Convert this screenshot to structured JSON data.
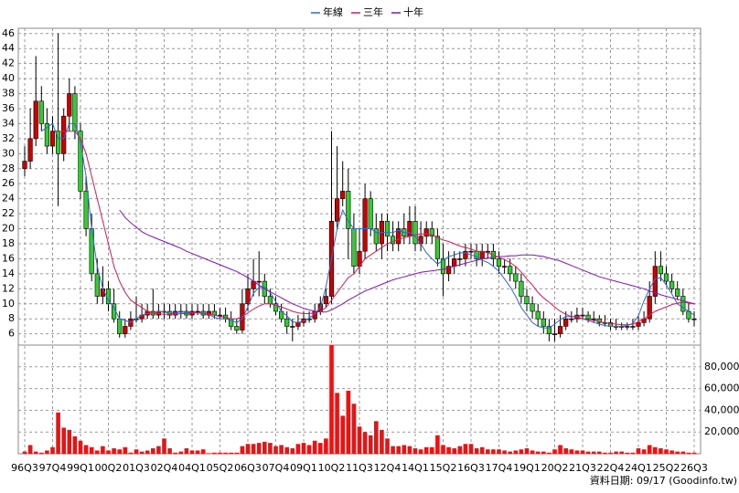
{
  "chart_data": {
    "type": "candlestick",
    "categories": [
      "96Q3",
      null,
      null,
      null,
      null,
      "97Q4",
      null,
      null,
      null,
      null,
      "99Q1",
      null,
      null,
      null,
      null,
      "00Q2",
      null,
      null,
      null,
      null,
      "01Q3",
      null,
      null,
      null,
      null,
      "02Q4",
      null,
      null,
      null,
      null,
      "04Q1",
      null,
      null,
      null,
      null,
      "05Q2",
      null,
      null,
      null,
      null,
      "06Q3",
      null,
      null,
      null,
      null,
      "07Q4",
      null,
      null,
      null,
      null,
      "09Q1",
      null,
      null,
      null,
      null,
      "10Q2",
      null,
      null,
      null,
      null,
      "11Q3",
      null,
      null,
      null,
      null,
      "12Q4",
      null,
      null,
      null,
      null,
      "14Q1",
      null,
      null,
      null,
      null,
      "15Q2",
      null,
      null,
      null,
      null,
      "16Q3",
      null,
      null,
      null,
      null,
      "17Q4",
      null,
      null,
      null,
      null,
      "19Q1",
      null,
      null,
      null,
      null,
      "20Q2",
      null,
      null,
      null,
      null,
      "21Q3",
      null,
      null,
      null,
      null,
      "22Q4",
      null,
      null,
      null,
      null,
      "24Q1",
      null,
      null,
      null,
      null,
      "25Q2",
      null,
      null,
      null,
      null,
      "26Q3"
    ],
    "open": [
      28,
      29,
      32,
      37,
      34,
      31,
      33,
      30,
      35,
      38,
      33,
      25,
      20,
      14,
      11,
      12,
      10,
      8,
      6,
      7,
      8,
      8,
      8.5,
      9,
      8.5,
      9,
      9,
      8.5,
      9,
      9,
      8.5,
      9,
      9,
      8.5,
      9,
      8.5,
      8.5,
      8,
      7,
      6.5,
      10,
      12,
      13,
      13,
      11,
      10,
      9,
      8,
      7,
      7,
      7.5,
      8,
      8,
      9,
      10,
      11,
      21,
      24,
      25,
      20,
      15,
      17,
      24,
      20,
      18,
      21,
      19,
      18,
      20,
      19,
      21,
      18,
      19,
      20,
      19,
      16,
      14,
      15,
      16,
      16,
      17,
      17,
      16,
      17,
      17,
      16,
      15,
      15,
      14,
      13,
      11,
      10,
      9,
      8,
      7,
      6,
      6,
      7,
      8,
      8,
      8.5,
      8.5,
      8,
      8,
      7.5,
      7.5,
      7,
      7,
      7,
      7,
      7,
      7.5,
      8,
      11,
      15,
      14,
      13,
      12,
      11,
      9,
      8
    ],
    "high": [
      31,
      36,
      43,
      39,
      36,
      35,
      46,
      36,
      40,
      39,
      34,
      27,
      22,
      16,
      15,
      13,
      12,
      9,
      8,
      9,
      11,
      10,
      10,
      12,
      10,
      10,
      10,
      10,
      10,
      10,
      10,
      10,
      10,
      10,
      10,
      9.5,
      9.5,
      9,
      8,
      12,
      14,
      16,
      17,
      14,
      12,
      11,
      10,
      9,
      8,
      8.5,
      9,
      9,
      10,
      11,
      12,
      33,
      31,
      29,
      28,
      22,
      20,
      26,
      25,
      22,
      22,
      22,
      21,
      21,
      22,
      23,
      23,
      21,
      21,
      21,
      20,
      18,
      17,
      17,
      17,
      18,
      18,
      18,
      18,
      18,
      18,
      17,
      16,
      16,
      15,
      14,
      12,
      11,
      10,
      9,
      8,
      8,
      8.5,
      9,
      9,
      9.5,
      9.5,
      9,
      9,
      8.5,
      8.5,
      8,
      8,
      7.5,
      7.5,
      8,
      8.5,
      9,
      13,
      17,
      17,
      15,
      14,
      13,
      12,
      10,
      9
    ],
    "low": [
      27,
      28,
      31,
      33,
      30,
      30,
      23,
      29,
      33,
      32,
      24,
      19,
      13,
      10,
      10,
      9,
      7.5,
      5.5,
      5.5,
      6.5,
      7.5,
      7.5,
      8,
      8,
      8,
      8,
      8,
      8,
      8,
      8,
      8,
      8.5,
      8,
      8,
      8,
      8,
      7.5,
      6.5,
      6,
      6,
      9,
      11,
      11,
      10,
      9.5,
      8.5,
      7.5,
      6,
      5,
      6.5,
      7,
      7.5,
      7.5,
      8.5,
      9.5,
      10,
      20,
      23,
      16,
      14,
      14,
      16,
      19,
      17,
      16,
      17,
      17,
      17,
      18,
      18,
      17,
      17,
      18,
      18,
      15,
      11,
      13,
      14,
      15,
      15,
      16,
      15,
      15,
      16,
      15,
      14,
      14,
      13,
      12,
      10,
      9,
      8,
      7,
      6,
      5,
      5,
      5.5,
      6.5,
      7.5,
      7.5,
      8,
      7.5,
      7.5,
      7,
      7,
      6.5,
      6.5,
      6.5,
      6.5,
      6.5,
      6.5,
      7,
      7.5,
      10,
      13,
      12.5,
      11.5,
      10.5,
      8.5,
      7.5,
      7
    ],
    "close": [
      29,
      32,
      37,
      34,
      31,
      33,
      30,
      35,
      38,
      33,
      25,
      20,
      14,
      11,
      12,
      10,
      8,
      6,
      7,
      8,
      8,
      8.5,
      9,
      8.5,
      9,
      9,
      8.5,
      9,
      9,
      8.5,
      9,
      9,
      8.5,
      9,
      8.5,
      8.5,
      8,
      7,
      6.5,
      10,
      12,
      13,
      13,
      11,
      10,
      9,
      8,
      7,
      7,
      7.5,
      8,
      8,
      9,
      10,
      11,
      21,
      24,
      25,
      20,
      15,
      17,
      24,
      20,
      18,
      21,
      19,
      18,
      20,
      19,
      21,
      18,
      19,
      20,
      19,
      16,
      14,
      15,
      16,
      16,
      17,
      17,
      16,
      17,
      17,
      16,
      15,
      15,
      14,
      13,
      11,
      10,
      9,
      8,
      7,
      6,
      6,
      7,
      8,
      8,
      8.5,
      8.5,
      8,
      8,
      7.5,
      7.5,
      7,
      7,
      7,
      7,
      7,
      7.5,
      8,
      11,
      15,
      14,
      13,
      12,
      11,
      9,
      8,
      8
    ],
    "up_color": "#cc0000",
    "down_color": "#33cc33",
    "candle_edge": "#000000",
    "ylim": [
      4.5,
      46.7
    ],
    "yticks": [
      6,
      8,
      10,
      12,
      14,
      16,
      18,
      20,
      22,
      24,
      26,
      28,
      30,
      32,
      34,
      36,
      38,
      40,
      42,
      44,
      46
    ],
    "grid": true,
    "series": [
      {
        "name": "年線",
        "color": "#2a6ad8",
        "values": [
          null,
          null,
          null,
          33,
          33.5,
          34,
          32,
          32,
          34,
          34,
          31.5,
          27,
          20,
          15,
          12,
          10.5,
          9.5,
          8,
          7.8,
          7.5,
          8,
          8.5,
          8.7,
          8.7,
          9,
          8.9,
          8.7,
          8.8,
          8.9,
          8.8,
          8.8,
          8.8,
          8.8,
          8.6,
          8.2,
          8,
          8,
          7.8,
          7.5,
          8,
          9.6,
          11.4,
          12.2,
          12.2,
          11.5,
          10.3,
          9,
          8.4,
          7.6,
          7.5,
          7.7,
          8.1,
          8.7,
          9.5,
          12.3,
          16,
          20,
          22.5,
          21,
          20,
          20,
          20,
          20,
          19.5,
          19.5,
          19.5,
          19.5,
          19.8,
          19.5,
          19.5,
          19,
          18,
          16.8,
          16,
          15.3,
          15.8,
          16.3,
          16.5,
          16.8,
          16.8,
          16.5,
          16.3,
          15.8,
          15.5,
          15,
          14.3,
          13.3,
          12.3,
          11,
          9.5,
          8.5,
          7.5,
          7,
          6.8,
          6.8,
          7.3,
          7.9,
          8.3,
          8.3,
          8.3,
          8,
          7.8,
          7.5,
          7.3,
          7.1,
          7,
          7,
          7,
          7.1,
          7.4,
          8.4,
          10.4,
          12,
          13.3,
          13.5,
          12.5,
          11.3,
          10,
          9.5,
          9,
          8.5
        ]
      },
      {
        "name": "三年",
        "color": "#e0185a",
        "values": [
          null,
          null,
          null,
          null,
          null,
          null,
          33,
          33,
          33,
          33,
          32,
          30,
          27,
          24,
          21,
          18,
          15,
          13,
          11.5,
          10.5,
          10,
          9.5,
          9,
          8.8,
          8.7,
          8.6,
          8.6,
          8.6,
          8.7,
          8.7,
          8.8,
          8.8,
          8.7,
          8.6,
          8.5,
          8.3,
          8.2,
          8,
          8,
          8.3,
          8.8,
          9.3,
          9.7,
          10,
          10,
          9.8,
          9.6,
          9.3,
          9,
          8.8,
          8.7,
          8.7,
          8.8,
          9,
          9.5,
          10.5,
          11.5,
          12.5,
          13.5,
          14,
          15,
          16,
          16.5,
          17,
          17.5,
          18,
          18.3,
          18.6,
          18.8,
          19,
          19.2,
          19.3,
          19.3,
          19.2,
          18.8,
          18.5,
          18.3,
          18,
          17.7,
          17.5,
          17.3,
          17,
          17,
          16.8,
          16.5,
          16.2,
          15.9,
          15.5,
          15,
          14.2,
          13.3,
          12.5,
          11.5,
          10.8,
          10.2,
          9.6,
          9,
          8.6,
          8.3,
          8.2,
          8,
          7.9,
          7.8,
          7.6,
          7.5,
          7.4,
          7.3,
          7.2,
          7.2,
          7.3,
          7.6,
          8,
          8.5,
          9,
          9.3,
          9.6,
          9.9,
          10.1,
          10.2,
          10.1,
          10
        ]
      },
      {
        "name": "十年",
        "color": "#8a10c8",
        "values": [
          null,
          null,
          null,
          null,
          null,
          null,
          null,
          null,
          null,
          null,
          null,
          null,
          null,
          null,
          null,
          null,
          null,
          22.5,
          21.5,
          20.8,
          20.2,
          19.6,
          19.2,
          18.9,
          18.6,
          18.3,
          18,
          17.7,
          17.4,
          17,
          16.7,
          16.4,
          16.1,
          15.8,
          15.5,
          15.2,
          14.9,
          14.6,
          14.3,
          13.9,
          13.5,
          13,
          12.5,
          12,
          11.6,
          11.2,
          10.8,
          10.4,
          10,
          9.7,
          9.4,
          9.2,
          9,
          8.9,
          8.9,
          9.2,
          9.6,
          10,
          10.5,
          10.9,
          11.3,
          11.7,
          12,
          12.3,
          12.6,
          12.9,
          13.2,
          13.4,
          13.6,
          13.8,
          14,
          14.2,
          14.3,
          14.4,
          14.5,
          14.6,
          14.8,
          15,
          15.2,
          15.4,
          15.6,
          15.8,
          16,
          16.1,
          16.2,
          16.3,
          16.3,
          16.4,
          16.4,
          16.5,
          16.5,
          16.5,
          16.4,
          16.3,
          16.1,
          15.9,
          15.7,
          15.4,
          15.1,
          14.8,
          14.5,
          14.2,
          13.9,
          13.6,
          13.4,
          13.2,
          13,
          12.8,
          12.6,
          12.4,
          12.2,
          12,
          11.7,
          11.5,
          11.2,
          11,
          10.8,
          10.6,
          10.4,
          10.2,
          10
        ]
      }
    ],
    "volume": [
      2000,
      8000,
      2000,
      1000,
      3000,
      6000,
      38000,
      24000,
      22000,
      16000,
      12000,
      8000,
      6000,
      3000,
      7000,
      3000,
      5000,
      4000,
      6000,
      1000,
      4000,
      2000,
      3000,
      5000,
      7000,
      14000,
      5000,
      1000,
      2000,
      5000,
      3000,
      3000,
      4000,
      500,
      1000,
      1000,
      1000,
      1000,
      1000,
      7000,
      9000,
      9000,
      10000,
      11000,
      10000,
      7000,
      8000,
      6000,
      5000,
      9000,
      10000,
      8000,
      12000,
      10000,
      14000,
      100000,
      56000,
      35000,
      58000,
      46000,
      25000,
      20000,
      17000,
      30000,
      22000,
      14000,
      7000,
      7000,
      8000,
      7000,
      5000,
      4000,
      6000,
      6000,
      17000,
      8000,
      6000,
      5000,
      7000,
      9000,
      9000,
      5000,
      6000,
      4000,
      4000,
      4000,
      3000,
      2000,
      3000,
      4000,
      5000,
      3000,
      2000,
      2000,
      1000,
      4000,
      8000,
      5000,
      4000,
      3000,
      3000,
      2000,
      2000,
      2000,
      1000,
      1000,
      2000,
      2000,
      1000,
      1000,
      5000,
      4000,
      8000,
      6000,
      5000,
      4000,
      3000,
      2000,
      2000,
      1000,
      1000
    ],
    "volume_color": "#ee1111",
    "volume_ylim": [
      0,
      100000
    ],
    "volume_yticks": [
      {
        "value": 20000,
        "label": "20,000"
      },
      {
        "value": 40000,
        "label": "40,000"
      },
      {
        "value": 60000,
        "label": "60,000"
      },
      {
        "value": 80000,
        "label": "80,000"
      }
    ],
    "footer": "資料日期: 09/17  (Goodinfo.tw)"
  }
}
